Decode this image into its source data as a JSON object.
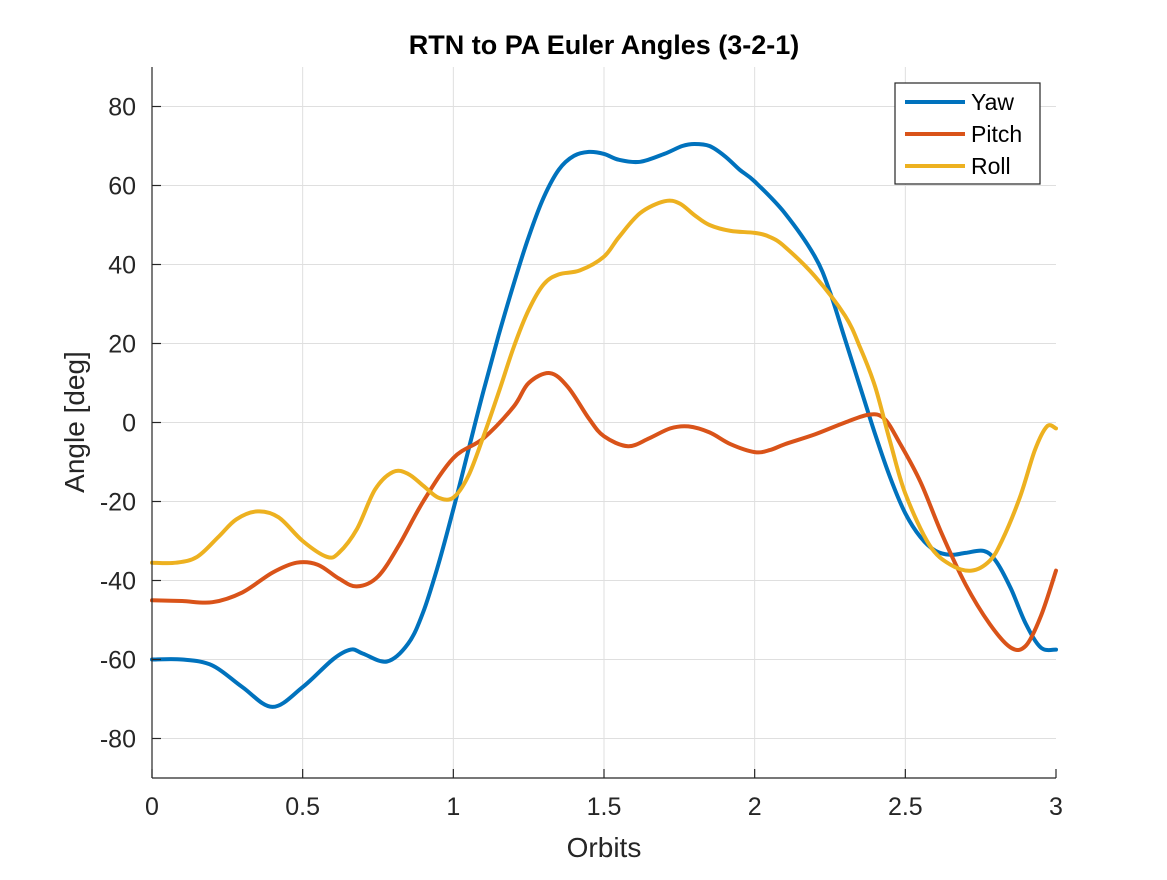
{
  "chart_data": {
    "type": "line",
    "title": "RTN to PA Euler Angles (3-2-1)",
    "xlabel": "Orbits",
    "ylabel": "Angle [deg]",
    "xlim": [
      0,
      3
    ],
    "ylim": [
      -90,
      90
    ],
    "xticks": [
      0,
      0.5,
      1,
      1.5,
      2,
      2.5,
      3
    ],
    "xtick_labels": [
      "0",
      "0.5",
      "1",
      "1.5",
      "2",
      "2.5",
      "3"
    ],
    "yticks": [
      -80,
      -60,
      -40,
      -20,
      0,
      20,
      40,
      60,
      80
    ],
    "ytick_labels": [
      "-80",
      "-60",
      "-40",
      "-20",
      "0",
      "20",
      "40",
      "60",
      "80"
    ],
    "grid": true,
    "legend_position": "top-right",
    "series": [
      {
        "name": "Yaw",
        "color": "#0072BD",
        "x": [
          0,
          0.1,
          0.2,
          0.3,
          0.4,
          0.5,
          0.6,
          0.66,
          0.7,
          0.78,
          0.85,
          0.9,
          0.95,
          1.0,
          1.05,
          1.1,
          1.15,
          1.2,
          1.25,
          1.3,
          1.35,
          1.4,
          1.45,
          1.5,
          1.55,
          1.62,
          1.7,
          1.76,
          1.8,
          1.85,
          1.9,
          1.95,
          2.0,
          2.1,
          2.2,
          2.25,
          2.3,
          2.35,
          2.4,
          2.45,
          2.5,
          2.55,
          2.6,
          2.65,
          2.7,
          2.76,
          2.8,
          2.85,
          2.9,
          2.95,
          3.0
        ],
        "y": [
          -60,
          -60,
          -61.5,
          -67,
          -72,
          -67,
          -60,
          -57.5,
          -58.5,
          -60.5,
          -56,
          -48,
          -36,
          -22,
          -7,
          8,
          22,
          35,
          47,
          57,
          64,
          67.5,
          68.5,
          68,
          66.5,
          66,
          68,
          70,
          70.5,
          70,
          67.5,
          64,
          61,
          53,
          42,
          33,
          21,
          9,
          -3,
          -14,
          -23,
          -29,
          -32.5,
          -33.5,
          -33,
          -32.5,
          -35,
          -42,
          -51,
          -57,
          -57.5
        ]
      },
      {
        "name": "Pitch",
        "color": "#D95319",
        "x": [
          0,
          0.1,
          0.2,
          0.3,
          0.4,
          0.48,
          0.55,
          0.62,
          0.68,
          0.75,
          0.82,
          0.9,
          1.0,
          1.1,
          1.2,
          1.25,
          1.32,
          1.38,
          1.45,
          1.5,
          1.58,
          1.65,
          1.72,
          1.78,
          1.85,
          1.92,
          2.0,
          2.05,
          2.1,
          2.2,
          2.3,
          2.38,
          2.43,
          2.48,
          2.55,
          2.62,
          2.7,
          2.78,
          2.85,
          2.9,
          2.95,
          3.0
        ],
        "y": [
          -45,
          -45.2,
          -45.5,
          -43,
          -38,
          -35.5,
          -36,
          -39.5,
          -41.5,
          -39,
          -31,
          -20,
          -9,
          -4,
          4,
          10,
          12.5,
          9,
          1,
          -3.5,
          -6,
          -4,
          -1.5,
          -1,
          -2.5,
          -5.5,
          -7.5,
          -7,
          -5.5,
          -3,
          0,
          2,
          1,
          -5,
          -15,
          -28,
          -41,
          -51,
          -57,
          -56.5,
          -49,
          -37.5
        ]
      },
      {
        "name": "Roll",
        "color": "#EDB120",
        "x": [
          0,
          0.08,
          0.15,
          0.22,
          0.28,
          0.35,
          0.42,
          0.5,
          0.58,
          0.62,
          0.68,
          0.74,
          0.8,
          0.85,
          0.9,
          0.95,
          1.0,
          1.05,
          1.1,
          1.15,
          1.2,
          1.25,
          1.3,
          1.35,
          1.42,
          1.5,
          1.55,
          1.62,
          1.7,
          1.75,
          1.8,
          1.85,
          1.92,
          2.0,
          2.05,
          2.1,
          2.2,
          2.3,
          2.35,
          2.4,
          2.45,
          2.5,
          2.58,
          2.65,
          2.72,
          2.78,
          2.82,
          2.88,
          2.93,
          2.97,
          3.0
        ],
        "y": [
          -35.5,
          -35.5,
          -34,
          -29,
          -24.5,
          -22.5,
          -24,
          -30,
          -34,
          -33,
          -27,
          -17,
          -12.5,
          -13,
          -16,
          -19,
          -19,
          -13.5,
          -3.5,
          7.5,
          19,
          28.5,
          35,
          37.5,
          38.5,
          42,
          47,
          53,
          56,
          55.5,
          52.5,
          50,
          48.5,
          48,
          47,
          44.5,
          37,
          27,
          19,
          9,
          -5,
          -18,
          -31,
          -36,
          -37.5,
          -35,
          -30,
          -19,
          -7,
          -1,
          -1.5
        ]
      }
    ]
  }
}
